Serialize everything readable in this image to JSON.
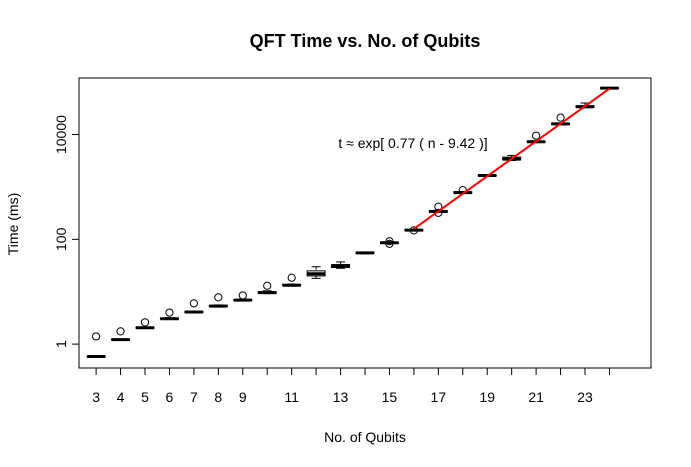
{
  "chart_data": {
    "type": "boxplot",
    "title": "QFT Time vs. No. of Qubits",
    "xlabel": "No. of Qubits",
    "ylabel": "Time (ms)",
    "y_scale": "log",
    "ylim": [
      0.35,
      120000
    ],
    "xlim": [
      2.3,
      25.7
    ],
    "y_ticks": [
      1,
      100,
      10000
    ],
    "y_tick_labels": [
      "1",
      "100",
      "10000"
    ],
    "x_ticks": [
      3,
      4,
      5,
      6,
      7,
      8,
      9,
      10,
      11,
      12,
      13,
      14,
      15,
      16,
      17,
      18,
      19,
      20,
      21,
      22,
      23,
      24
    ],
    "x_tick_labels": [
      "3",
      "4",
      "5",
      "6",
      "7",
      "8",
      "9",
      "",
      "11",
      "",
      "13",
      "",
      "15",
      "",
      "17",
      "",
      "19",
      "",
      "21",
      "",
      "23",
      ""
    ],
    "boxes": [
      {
        "x": 3,
        "q1": 0.57,
        "median": 0.58,
        "q3": 0.59,
        "lower": 0.57,
        "upper": 0.59,
        "outliers": [
          1.4
        ]
      },
      {
        "x": 4,
        "q1": 1.2,
        "median": 1.22,
        "q3": 1.25,
        "lower": 1.2,
        "upper": 1.25,
        "outliers": [
          1.75
        ]
      },
      {
        "x": 5,
        "q1": 2.0,
        "median": 2.05,
        "q3": 2.1,
        "lower": 2.0,
        "upper": 2.1,
        "outliers": [
          2.6
        ]
      },
      {
        "x": 6,
        "q1": 3.0,
        "median": 3.05,
        "q3": 3.15,
        "lower": 3.0,
        "upper": 3.2,
        "outliers": [
          4.0
        ]
      },
      {
        "x": 7,
        "q1": 4.0,
        "median": 4.1,
        "q3": 4.2,
        "lower": 4.0,
        "upper": 4.25,
        "outliers": [
          6.0
        ]
      },
      {
        "x": 8,
        "q1": 5.2,
        "median": 5.3,
        "q3": 5.5,
        "lower": 5.1,
        "upper": 5.6,
        "outliers": [
          7.8
        ]
      },
      {
        "x": 9,
        "q1": 6.8,
        "median": 6.9,
        "q3": 7.1,
        "lower": 6.7,
        "upper": 7.2,
        "outliers": [
          8.5
        ]
      },
      {
        "x": 10,
        "q1": 9.3,
        "median": 9.6,
        "q3": 10.0,
        "lower": 9.2,
        "upper": 10.4,
        "outliers": [
          13.0
        ]
      },
      {
        "x": 11,
        "q1": 13.0,
        "median": 13.3,
        "q3": 13.8,
        "lower": 12.8,
        "upper": 14.0,
        "outliers": [
          18.5
        ]
      },
      {
        "x": 12,
        "q1": 20.0,
        "median": 22.0,
        "q3": 25.0,
        "lower": 18.0,
        "upper": 30.0,
        "outliers": []
      },
      {
        "x": 13,
        "q1": 29.0,
        "median": 31.0,
        "q3": 33.0,
        "lower": 28.0,
        "upper": 37.0,
        "outliers": []
      },
      {
        "x": 14,
        "q1": 54.0,
        "median": 55.0,
        "q3": 56.5,
        "lower": 53.0,
        "upper": 57.0,
        "outliers": []
      },
      {
        "x": 15,
        "q1": 84.0,
        "median": 86.0,
        "q3": 88.0,
        "lower": 83.0,
        "upper": 90.0,
        "outliers": [
          82.0,
          92.0
        ]
      },
      {
        "x": 16,
        "q1": 146.0,
        "median": 150.0,
        "q3": 154.0,
        "lower": 144.0,
        "upper": 156.0,
        "outliers": [
          148.0
        ]
      },
      {
        "x": 17,
        "q1": 330.0,
        "median": 340.0,
        "q3": 355.0,
        "lower": 325.0,
        "upper": 360.0,
        "outliers": [
          320.0,
          420.0
        ]
      },
      {
        "x": 18,
        "q1": 760.0,
        "median": 780.0,
        "q3": 810.0,
        "lower": 750.0,
        "upper": 820.0,
        "outliers": [
          870.0
        ]
      },
      {
        "x": 19,
        "q1": 1620.0,
        "median": 1650.0,
        "q3": 1690.0,
        "lower": 1600.0,
        "upper": 1700.0,
        "outliers": []
      },
      {
        "x": 20,
        "q1": 3300.0,
        "median": 3400.0,
        "q3": 3700.0,
        "lower": 3200.0,
        "upper": 4000.0,
        "outliers": []
      },
      {
        "x": 21,
        "q1": 7100.0,
        "median": 7300.0,
        "q3": 7500.0,
        "lower": 7000.0,
        "upper": 7600.0,
        "outliers": [
          9500.0
        ]
      },
      {
        "x": 22,
        "q1": 15500.0,
        "median": 16000.0,
        "q3": 16500.0,
        "lower": 15300.0,
        "upper": 16700.0,
        "outliers": [
          21000.0
        ]
      },
      {
        "x": 23,
        "q1": 33000.0,
        "median": 34000.0,
        "q3": 35500.0,
        "lower": 32500.0,
        "upper": 40000.0,
        "outliers": []
      },
      {
        "x": 24,
        "q1": 76000.0,
        "median": 77000.0,
        "q3": 78500.0,
        "lower": 75000.0,
        "upper": 79000.0,
        "outliers": []
      }
    ],
    "fit_line": {
      "color": "#ff0000",
      "rate": 0.77,
      "offset": 9.42,
      "x_start": 16,
      "x_end": 24
    },
    "annotation": "t ≈ exp[ 0.77 ( n -  9.42 )]",
    "grid": false,
    "legend": false
  }
}
